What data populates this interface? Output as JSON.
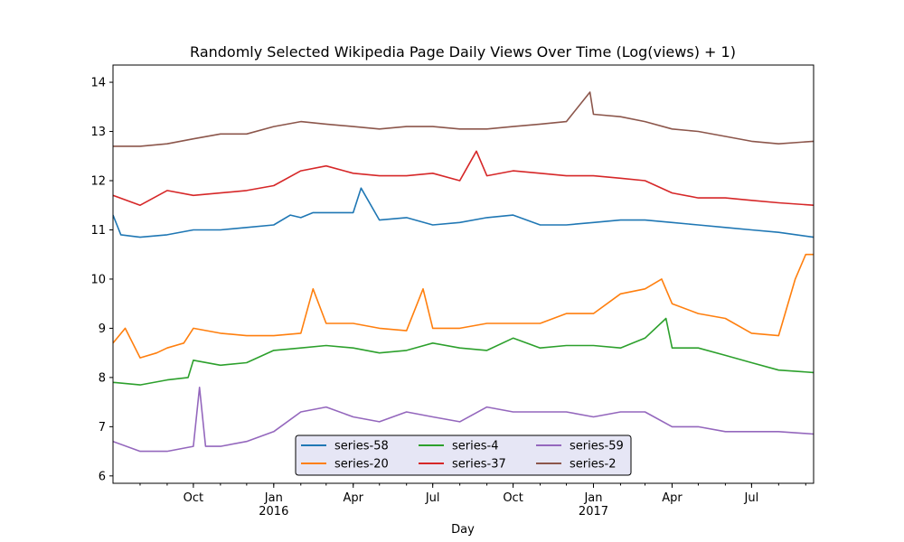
{
  "chart_data": {
    "type": "line",
    "title": "Randomly Selected Wikipedia Page Daily Views Over Time (Log(views) + 1)",
    "xlabel": "Day",
    "ylabel": "",
    "xlim": [
      "2015-07-01",
      "2017-09-10"
    ],
    "ylim": [
      5.85,
      14.35
    ],
    "yticks": [
      6,
      7,
      8,
      9,
      10,
      11,
      12,
      13,
      14
    ],
    "xticks": [
      {
        "date": "2015-10-01",
        "label": "Oct",
        "sublabel": ""
      },
      {
        "date": "2016-01-01",
        "label": "Jan",
        "sublabel": "2016"
      },
      {
        "date": "2016-04-01",
        "label": "Apr",
        "sublabel": ""
      },
      {
        "date": "2016-07-01",
        "label": "Jul",
        "sublabel": ""
      },
      {
        "date": "2016-10-01",
        "label": "Oct",
        "sublabel": ""
      },
      {
        "date": "2017-01-01",
        "label": "Jan",
        "sublabel": "2017"
      },
      {
        "date": "2017-04-01",
        "label": "Apr",
        "sublabel": ""
      },
      {
        "date": "2017-07-01",
        "label": "Jul",
        "sublabel": ""
      }
    ],
    "grid": false,
    "legend_position": "lower-center",
    "legend_columns": 3,
    "series": [
      {
        "name": "series-58",
        "color": "#1f77b4",
        "x": [
          "2015-07-01",
          "2015-07-10",
          "2015-08-01",
          "2015-09-01",
          "2015-10-01",
          "2015-11-01",
          "2015-12-01",
          "2016-01-01",
          "2016-01-20",
          "2016-02-01",
          "2016-02-15",
          "2016-03-01",
          "2016-03-20",
          "2016-04-01",
          "2016-04-10",
          "2016-05-01",
          "2016-06-01",
          "2016-07-01",
          "2016-08-01",
          "2016-09-01",
          "2016-10-01",
          "2016-11-01",
          "2016-12-01",
          "2017-01-01",
          "2017-02-01",
          "2017-03-01",
          "2017-04-01",
          "2017-05-01",
          "2017-06-01",
          "2017-07-01",
          "2017-08-01",
          "2017-09-10"
        ],
        "y": [
          11.3,
          10.9,
          10.85,
          10.9,
          11.0,
          11.0,
          11.05,
          11.1,
          11.3,
          11.25,
          11.35,
          11.35,
          11.35,
          11.35,
          11.85,
          11.2,
          11.25,
          11.1,
          11.15,
          11.25,
          11.3,
          11.1,
          11.1,
          11.15,
          11.2,
          11.2,
          11.15,
          11.1,
          11.05,
          11.0,
          10.95,
          10.85
        ]
      },
      {
        "name": "series-20",
        "color": "#ff7f0e",
        "x": [
          "2015-07-01",
          "2015-07-15",
          "2015-08-01",
          "2015-08-20",
          "2015-09-01",
          "2015-09-20",
          "2015-10-01",
          "2015-11-01",
          "2015-12-01",
          "2016-01-01",
          "2016-02-01",
          "2016-02-15",
          "2016-03-01",
          "2016-04-01",
          "2016-05-01",
          "2016-06-01",
          "2016-06-20",
          "2016-07-01",
          "2016-08-01",
          "2016-09-01",
          "2016-10-01",
          "2016-11-01",
          "2016-12-01",
          "2017-01-01",
          "2017-02-01",
          "2017-03-01",
          "2017-03-20",
          "2017-04-01",
          "2017-05-01",
          "2017-06-01",
          "2017-07-01",
          "2017-08-01",
          "2017-08-20",
          "2017-09-01",
          "2017-09-10"
        ],
        "y": [
          8.7,
          9.0,
          8.4,
          8.5,
          8.6,
          8.7,
          9.0,
          8.9,
          8.85,
          8.85,
          8.9,
          9.8,
          9.1,
          9.1,
          9.0,
          8.95,
          9.8,
          9.0,
          9.0,
          9.1,
          9.1,
          9.1,
          9.3,
          9.3,
          9.7,
          9.8,
          10.0,
          9.5,
          9.3,
          9.2,
          8.9,
          8.85,
          10.0,
          10.5,
          10.5
        ]
      },
      {
        "name": "series-4",
        "color": "#2ca02c",
        "x": [
          "2015-07-01",
          "2015-08-01",
          "2015-09-01",
          "2015-09-25",
          "2015-10-01",
          "2015-11-01",
          "2015-12-01",
          "2016-01-01",
          "2016-02-01",
          "2016-03-01",
          "2016-04-01",
          "2016-05-01",
          "2016-06-01",
          "2016-07-01",
          "2016-08-01",
          "2016-09-01",
          "2016-10-01",
          "2016-11-01",
          "2016-12-01",
          "2017-01-01",
          "2017-02-01",
          "2017-03-01",
          "2017-03-25",
          "2017-04-01",
          "2017-05-01",
          "2017-06-01",
          "2017-07-01",
          "2017-08-01",
          "2017-09-10"
        ],
        "y": [
          7.9,
          7.85,
          7.95,
          8.0,
          8.35,
          8.25,
          8.3,
          8.55,
          8.6,
          8.65,
          8.6,
          8.5,
          8.55,
          8.7,
          8.6,
          8.55,
          8.8,
          8.6,
          8.65,
          8.65,
          8.6,
          8.8,
          9.2,
          8.6,
          8.6,
          8.45,
          8.3,
          8.15,
          8.1
        ]
      },
      {
        "name": "series-37",
        "color": "#d62728",
        "x": [
          "2015-07-01",
          "2015-08-01",
          "2015-09-01",
          "2015-10-01",
          "2015-11-01",
          "2015-12-01",
          "2016-01-01",
          "2016-02-01",
          "2016-03-01",
          "2016-04-01",
          "2016-05-01",
          "2016-06-01",
          "2016-07-01",
          "2016-08-01",
          "2016-08-20",
          "2016-09-01",
          "2016-10-01",
          "2016-11-01",
          "2016-12-01",
          "2017-01-01",
          "2017-02-01",
          "2017-03-01",
          "2017-04-01",
          "2017-05-01",
          "2017-06-01",
          "2017-07-01",
          "2017-08-01",
          "2017-09-10"
        ],
        "y": [
          11.7,
          11.5,
          11.8,
          11.7,
          11.75,
          11.8,
          11.9,
          12.2,
          12.3,
          12.15,
          12.1,
          12.1,
          12.15,
          12.0,
          12.6,
          12.1,
          12.2,
          12.15,
          12.1,
          12.1,
          12.05,
          12.0,
          11.75,
          11.65,
          11.65,
          11.6,
          11.55,
          11.5
        ]
      },
      {
        "name": "series-59",
        "color": "#9467bd",
        "x": [
          "2015-07-01",
          "2015-08-01",
          "2015-09-01",
          "2015-10-01",
          "2015-10-08",
          "2015-10-15",
          "2015-11-01",
          "2015-12-01",
          "2016-01-01",
          "2016-02-01",
          "2016-03-01",
          "2016-04-01",
          "2016-05-01",
          "2016-06-01",
          "2016-07-01",
          "2016-08-01",
          "2016-09-01",
          "2016-10-01",
          "2016-11-01",
          "2016-12-01",
          "2017-01-01",
          "2017-02-01",
          "2017-03-01",
          "2017-04-01",
          "2017-05-01",
          "2017-06-01",
          "2017-07-01",
          "2017-08-01",
          "2017-09-10"
        ],
        "y": [
          6.7,
          6.5,
          6.5,
          6.6,
          7.8,
          6.6,
          6.6,
          6.7,
          6.9,
          7.3,
          7.4,
          7.2,
          7.1,
          7.3,
          7.2,
          7.1,
          7.4,
          7.3,
          7.3,
          7.3,
          7.2,
          7.3,
          7.3,
          7.0,
          7.0,
          6.9,
          6.9,
          6.9,
          6.85
        ]
      },
      {
        "name": "series-2",
        "color": "#8c564b",
        "x": [
          "2015-07-01",
          "2015-08-01",
          "2015-09-01",
          "2015-10-01",
          "2015-11-01",
          "2015-12-01",
          "2016-01-01",
          "2016-02-01",
          "2016-03-01",
          "2016-04-01",
          "2016-05-01",
          "2016-06-01",
          "2016-07-01",
          "2016-08-01",
          "2016-09-01",
          "2016-10-01",
          "2016-11-01",
          "2016-12-01",
          "2016-12-28",
          "2017-01-01",
          "2017-02-01",
          "2017-03-01",
          "2017-04-01",
          "2017-05-01",
          "2017-06-01",
          "2017-07-01",
          "2017-08-01",
          "2017-09-10"
        ],
        "y": [
          12.7,
          12.7,
          12.75,
          12.85,
          12.95,
          12.95,
          13.1,
          13.2,
          13.15,
          13.1,
          13.05,
          13.1,
          13.1,
          13.05,
          13.05,
          13.1,
          13.15,
          13.2,
          13.8,
          13.35,
          13.3,
          13.2,
          13.05,
          13.0,
          12.9,
          12.8,
          12.75,
          12.8
        ]
      }
    ]
  }
}
